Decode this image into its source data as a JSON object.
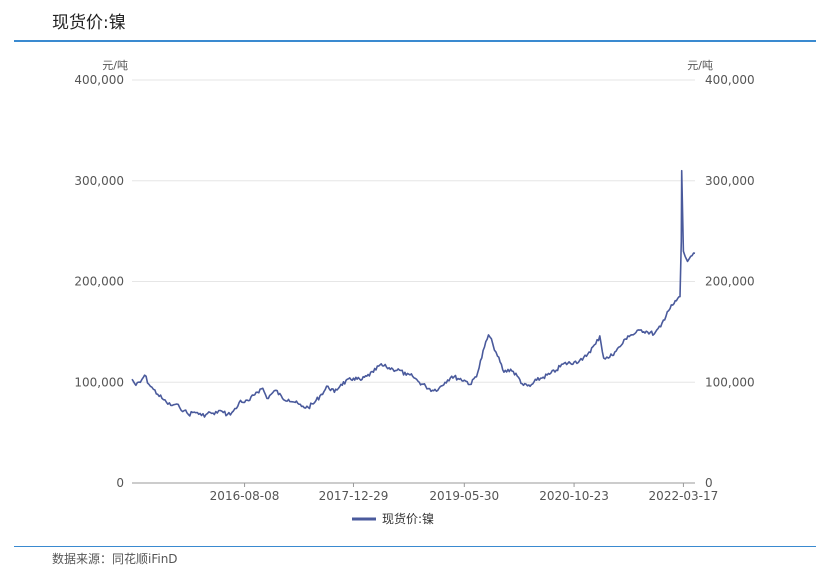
{
  "header": {
    "title": "现货价:镍"
  },
  "footer": {
    "source": "数据来源：同花顺iFinD"
  },
  "colors": {
    "line": "#4a5a9c",
    "rule": "#3a8ad0",
    "grid": "#e6e6e6"
  },
  "chart_data": {
    "type": "line",
    "title": "",
    "ylabel_left": "元/吨",
    "ylabel_right": "元/吨",
    "ylim": [
      0,
      400000
    ],
    "yticks": [
      0,
      100000,
      200000,
      300000,
      400000
    ],
    "ytick_labels": [
      "0",
      "100,000",
      "200,000",
      "300,000",
      "400,000"
    ],
    "xlim": [
      "2015-03-02",
      "2022-05-10"
    ],
    "xtick_labels": [
      "2016-08-08",
      "2017-12-29",
      "2019-05-30",
      "2020-10-23",
      "2022-03-17"
    ],
    "legend": {
      "position": "bottom-center"
    },
    "grid": true,
    "series": [
      {
        "name": "现货价:镍",
        "x": [
          "2015-03-02",
          "2015-03-20",
          "2015-04-10",
          "2015-04-30",
          "2015-05-20",
          "2015-06-10",
          "2015-06-30",
          "2015-07-20",
          "2015-08-10",
          "2015-08-30",
          "2015-09-20",
          "2015-10-10",
          "2015-11-01",
          "2015-11-20",
          "2015-12-10",
          "2016-01-01",
          "2016-01-20",
          "2016-02-10",
          "2016-03-01",
          "2016-03-20",
          "2016-04-10",
          "2016-05-01",
          "2016-05-20",
          "2016-06-10",
          "2016-07-01",
          "2016-07-20",
          "2016-08-08",
          "2016-09-01",
          "2016-10-01",
          "2016-11-01",
          "2016-11-20",
          "2016-12-10",
          "2017-01-01",
          "2017-02-01",
          "2017-03-01",
          "2017-04-01",
          "2017-05-01",
          "2017-06-01",
          "2017-07-01",
          "2017-08-01",
          "2017-09-01",
          "2017-10-01",
          "2017-11-01",
          "2017-12-29",
          "2018-02-01",
          "2018-03-01",
          "2018-04-01",
          "2018-05-01",
          "2018-06-01",
          "2018-07-01",
          "2018-08-01",
          "2018-09-01",
          "2018-10-01",
          "2018-11-01",
          "2018-12-01",
          "2019-01-01",
          "2019-02-01",
          "2019-03-01",
          "2019-04-01",
          "2019-05-30",
          "2019-07-01",
          "2019-08-01",
          "2019-09-01",
          "2019-09-20",
          "2019-10-10",
          "2019-11-01",
          "2019-12-01",
          "2020-01-01",
          "2020-02-01",
          "2020-03-01",
          "2020-04-01",
          "2020-05-01",
          "2020-06-01",
          "2020-07-01",
          "2020-08-01",
          "2020-09-01",
          "2020-10-23",
          "2020-12-01",
          "2021-01-01",
          "2021-02-01",
          "2021-02-20",
          "2021-03-10",
          "2021-04-01",
          "2021-05-01",
          "2021-06-01",
          "2021-07-01",
          "2021-08-01",
          "2021-09-01",
          "2021-10-01",
          "2021-11-01",
          "2021-12-01",
          "2022-01-01",
          "2022-02-01",
          "2022-03-01",
          "2022-03-07",
          "2022-03-09",
          "2022-03-17",
          "2022-03-25",
          "2022-04-05",
          "2022-04-20",
          "2022-05-10"
        ],
        "values": [
          103000,
          97000,
          100000,
          107000,
          98000,
          93000,
          88000,
          84000,
          80000,
          77000,
          78000,
          75000,
          72000,
          68000,
          70000,
          70000,
          67000,
          68000,
          70000,
          68000,
          72000,
          70000,
          68000,
          70000,
          74000,
          82000,
          80000,
          82000,
          90000,
          94000,
          84000,
          88000,
          92000,
          84000,
          83000,
          80000,
          76000,
          75000,
          80000,
          88000,
          96000,
          90000,
          98000,
          104000,
          102000,
          106000,
          110000,
          117000,
          115000,
          113000,
          112000,
          107000,
          106000,
          100000,
          96000,
          92000,
          94000,
          100000,
          106000,
          102000,
          98000,
          110000,
          135000,
          147000,
          138000,
          126000,
          110000,
          113000,
          106000,
          97000,
          96000,
          102000,
          105000,
          108000,
          112000,
          118000,
          120000,
          122000,
          130000,
          138000,
          146000,
          124000,
          124000,
          130000,
          137000,
          146000,
          148000,
          152000,
          150000,
          148000,
          155000,
          170000,
          178000,
          185000,
          240000,
          310000,
          230000,
          225000,
          220000,
          225000,
          228000
        ]
      }
    ]
  }
}
